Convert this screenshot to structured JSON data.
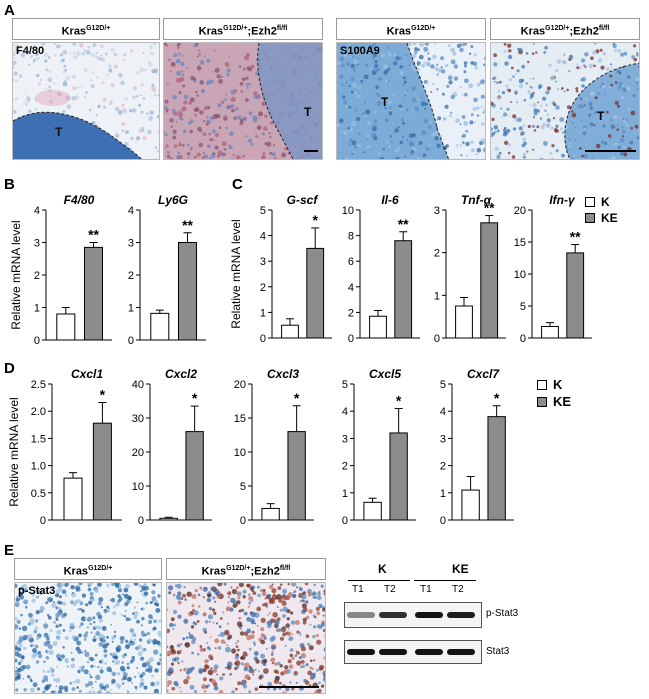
{
  "panels": {
    "A": "A",
    "B": "B",
    "C": "C",
    "D": "D",
    "E": "E"
  },
  "genotypes": {
    "k_base": "Kras",
    "k_sup": "G12D/+",
    "ke_base": "Kras",
    "ke_sup": "G12D/+",
    "ke_mid": ";Ezh2",
    "ke_sup2": "fl/fl"
  },
  "stains": {
    "f480": "F4/80",
    "s100a9": "S100A9",
    "pstat3": "p-Stat3"
  },
  "tumor_mark": "T",
  "ylabel": "Relative mRNA level",
  "legend": {
    "k": "K",
    "ke": "KE"
  },
  "sig": {
    "two": "**",
    "one": "*"
  },
  "chart_data": [
    {
      "type": "bar",
      "title": "F4/80",
      "categories": [
        "K",
        "KE"
      ],
      "values": [
        0.8,
        2.85
      ],
      "errors": [
        0.2,
        0.15
      ],
      "sig": "**",
      "ylim": [
        0,
        4
      ],
      "yticks": [
        "0",
        "1",
        "2",
        "3",
        "4"
      ],
      "ylabel": "Relative mRNA level"
    },
    {
      "type": "bar",
      "title": "Ly6G",
      "categories": [
        "K",
        "KE"
      ],
      "values": [
        0.82,
        3.0
      ],
      "errors": [
        0.1,
        0.3
      ],
      "sig": "**",
      "ylim": [
        0,
        4
      ],
      "yticks": [
        "0",
        "1",
        "2",
        "3",
        "4"
      ]
    },
    {
      "type": "bar",
      "title": "G-scf",
      "categories": [
        "K",
        "KE"
      ],
      "values": [
        0.5,
        3.5
      ],
      "errors": [
        0.25,
        0.8
      ],
      "sig": "*",
      "ylim": [
        0,
        5
      ],
      "yticks": [
        "0",
        "1",
        "2",
        "3",
        "4",
        "5"
      ],
      "ylabel": "Relative mRNA level"
    },
    {
      "type": "bar",
      "title": "Il-6",
      "categories": [
        "K",
        "KE"
      ],
      "values": [
        1.7,
        7.6
      ],
      "errors": [
        0.45,
        0.7
      ],
      "sig": "**",
      "ylim": [
        0,
        10
      ],
      "yticks": [
        "0",
        "2",
        "4",
        "6",
        "8",
        "10"
      ]
    },
    {
      "type": "bar",
      "title": "Tnf-α",
      "categories": [
        "K",
        "KE"
      ],
      "values": [
        0.75,
        2.7
      ],
      "errors": [
        0.2,
        0.17
      ],
      "sig": "**",
      "ylim": [
        0,
        3
      ],
      "yticks": [
        "0",
        "1",
        "2",
        "3"
      ]
    },
    {
      "type": "bar",
      "title": "Ifn-γ",
      "categories": [
        "K",
        "KE"
      ],
      "values": [
        1.8,
        13.3
      ],
      "errors": [
        0.6,
        1.3
      ],
      "sig": "**",
      "ylim": [
        0,
        20
      ],
      "yticks": [
        "0",
        "5",
        "10",
        "15",
        "20"
      ]
    },
    {
      "type": "bar",
      "title": "Cxcl1",
      "categories": [
        "K",
        "KE"
      ],
      "values": [
        0.77,
        1.78
      ],
      "errors": [
        0.1,
        0.38
      ],
      "sig": "*",
      "ylim": [
        0,
        2.5
      ],
      "yticks": [
        "0",
        "0.5",
        "1.0",
        "1.5",
        "2.0",
        "2.5"
      ],
      "ylabel": "Relative mRNA level"
    },
    {
      "type": "bar",
      "title": "Cxcl2",
      "categories": [
        "K",
        "KE"
      ],
      "values": [
        0.5,
        26
      ],
      "errors": [
        0.3,
        7.5
      ],
      "sig": "*",
      "ylim": [
        0,
        40
      ],
      "yticks": [
        "0",
        "10",
        "20",
        "30",
        "40"
      ]
    },
    {
      "type": "bar",
      "title": "Cxcl3",
      "categories": [
        "K",
        "KE"
      ],
      "values": [
        1.7,
        13
      ],
      "errors": [
        0.7,
        3.8
      ],
      "sig": "*",
      "ylim": [
        0,
        20
      ],
      "yticks": [
        "0",
        "5",
        "10",
        "15",
        "20"
      ]
    },
    {
      "type": "bar",
      "title": "Cxcl5",
      "categories": [
        "K",
        "KE"
      ],
      "values": [
        0.65,
        3.2
      ],
      "errors": [
        0.15,
        0.9
      ],
      "sig": "*",
      "ylim": [
        0,
        5
      ],
      "yticks": [
        "0",
        "1",
        "2",
        "3",
        "4",
        "5"
      ]
    },
    {
      "type": "bar",
      "title": "Cxcl7",
      "categories": [
        "K",
        "KE"
      ],
      "values": [
        1.1,
        3.8
      ],
      "errors": [
        0.5,
        0.4
      ],
      "sig": "*",
      "ylim": [
        0,
        5
      ],
      "yticks": [
        "0",
        "1",
        "2",
        "3",
        "4",
        "5"
      ]
    }
  ],
  "western": {
    "group_k": "K",
    "group_ke": "KE",
    "lanes": [
      "T1",
      "T2",
      "T1",
      "T2"
    ],
    "bands": [
      "p-Stat3",
      "Stat3"
    ],
    "pstat3_intensity": [
      0.35,
      0.8,
      0.95,
      0.9
    ],
    "stat3_intensity": [
      0.95,
      0.95,
      0.95,
      0.95
    ]
  },
  "colors": {
    "k_bar": "#ffffff",
    "ke_bar": "#8c8c8c",
    "stain_blue": "#5a8fc8",
    "stain_red": "#b0403a"
  }
}
